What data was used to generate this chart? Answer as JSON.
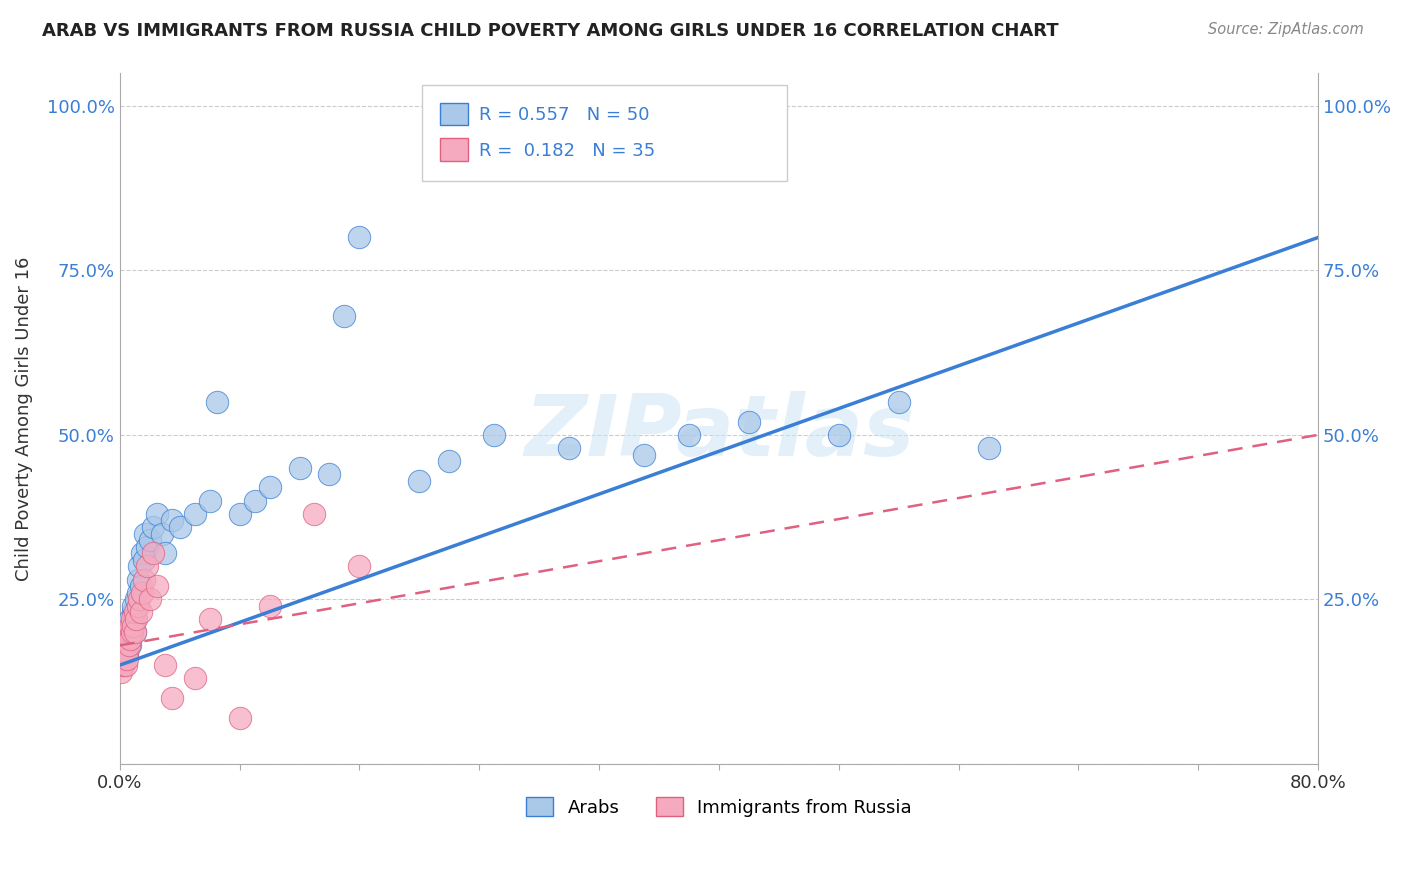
{
  "title": "ARAB VS IMMIGRANTS FROM RUSSIA CHILD POVERTY AMONG GIRLS UNDER 16 CORRELATION CHART",
  "source": "Source: ZipAtlas.com",
  "ylabel": "Child Poverty Among Girls Under 16",
  "xlim": [
    0.0,
    0.8
  ],
  "ylim": [
    0.0,
    1.05
  ],
  "xticks": [
    0.0,
    0.08,
    0.16,
    0.24,
    0.32,
    0.4,
    0.48,
    0.56,
    0.64,
    0.72,
    0.8
  ],
  "ytick_vals": [
    0.0,
    0.25,
    0.5,
    0.75,
    1.0
  ],
  "ytick_labels": [
    "",
    "25.0%",
    "50.0%",
    "75.0%",
    "100.0%"
  ],
  "xtick_labels": [
    "0.0%",
    "",
    "",
    "",
    "",
    "",
    "",
    "",
    "",
    "",
    "80.0%"
  ],
  "arab_R": 0.557,
  "arab_N": 50,
  "russia_R": 0.182,
  "russia_N": 35,
  "arab_color": "#aac8e8",
  "russia_color": "#f5aabf",
  "trendline_arab_color": "#3a7fd5",
  "trendline_russia_color": "#e06080",
  "watermark": "ZIPatlas",
  "arab_x": [
    0.002,
    0.003,
    0.004,
    0.005,
    0.006,
    0.006,
    0.007,
    0.007,
    0.008,
    0.008,
    0.009,
    0.009,
    0.01,
    0.01,
    0.011,
    0.012,
    0.012,
    0.013,
    0.014,
    0.015,
    0.016,
    0.017,
    0.018,
    0.02,
    0.022,
    0.025,
    0.028,
    0.03,
    0.035,
    0.04,
    0.05,
    0.06,
    0.065,
    0.08,
    0.09,
    0.1,
    0.12,
    0.14,
    0.16,
    0.2,
    0.22,
    0.25,
    0.3,
    0.35,
    0.38,
    0.42,
    0.48,
    0.52,
    0.58,
    0.15
  ],
  "arab_y": [
    0.15,
    0.16,
    0.18,
    0.17,
    0.2,
    0.19,
    0.22,
    0.18,
    0.2,
    0.21,
    0.23,
    0.24,
    0.22,
    0.2,
    0.25,
    0.28,
    0.26,
    0.3,
    0.27,
    0.32,
    0.31,
    0.35,
    0.33,
    0.34,
    0.36,
    0.38,
    0.35,
    0.32,
    0.37,
    0.36,
    0.38,
    0.4,
    0.55,
    0.38,
    0.4,
    0.42,
    0.45,
    0.44,
    0.8,
    0.43,
    0.46,
    0.5,
    0.48,
    0.47,
    0.5,
    0.52,
    0.5,
    0.55,
    0.48,
    0.68
  ],
  "russia_x": [
    0.001,
    0.002,
    0.003,
    0.003,
    0.004,
    0.004,
    0.005,
    0.005,
    0.006,
    0.006,
    0.007,
    0.007,
    0.008,
    0.008,
    0.009,
    0.01,
    0.01,
    0.011,
    0.012,
    0.013,
    0.014,
    0.015,
    0.016,
    0.018,
    0.02,
    0.022,
    0.025,
    0.03,
    0.035,
    0.05,
    0.06,
    0.08,
    0.1,
    0.13,
    0.16
  ],
  "russia_y": [
    0.14,
    0.15,
    0.16,
    0.17,
    0.15,
    0.18,
    0.17,
    0.16,
    0.18,
    0.2,
    0.19,
    0.21,
    0.2,
    0.22,
    0.21,
    0.2,
    0.23,
    0.22,
    0.24,
    0.25,
    0.23,
    0.26,
    0.28,
    0.3,
    0.25,
    0.32,
    0.27,
    0.15,
    0.1,
    0.13,
    0.22,
    0.07,
    0.24,
    0.38,
    0.3
  ],
  "arab_trendline_x": [
    0.0,
    0.8
  ],
  "arab_trendline_y": [
    0.15,
    0.8
  ],
  "russia_trendline_x": [
    0.0,
    0.8
  ],
  "russia_trendline_y": [
    0.18,
    0.5
  ]
}
